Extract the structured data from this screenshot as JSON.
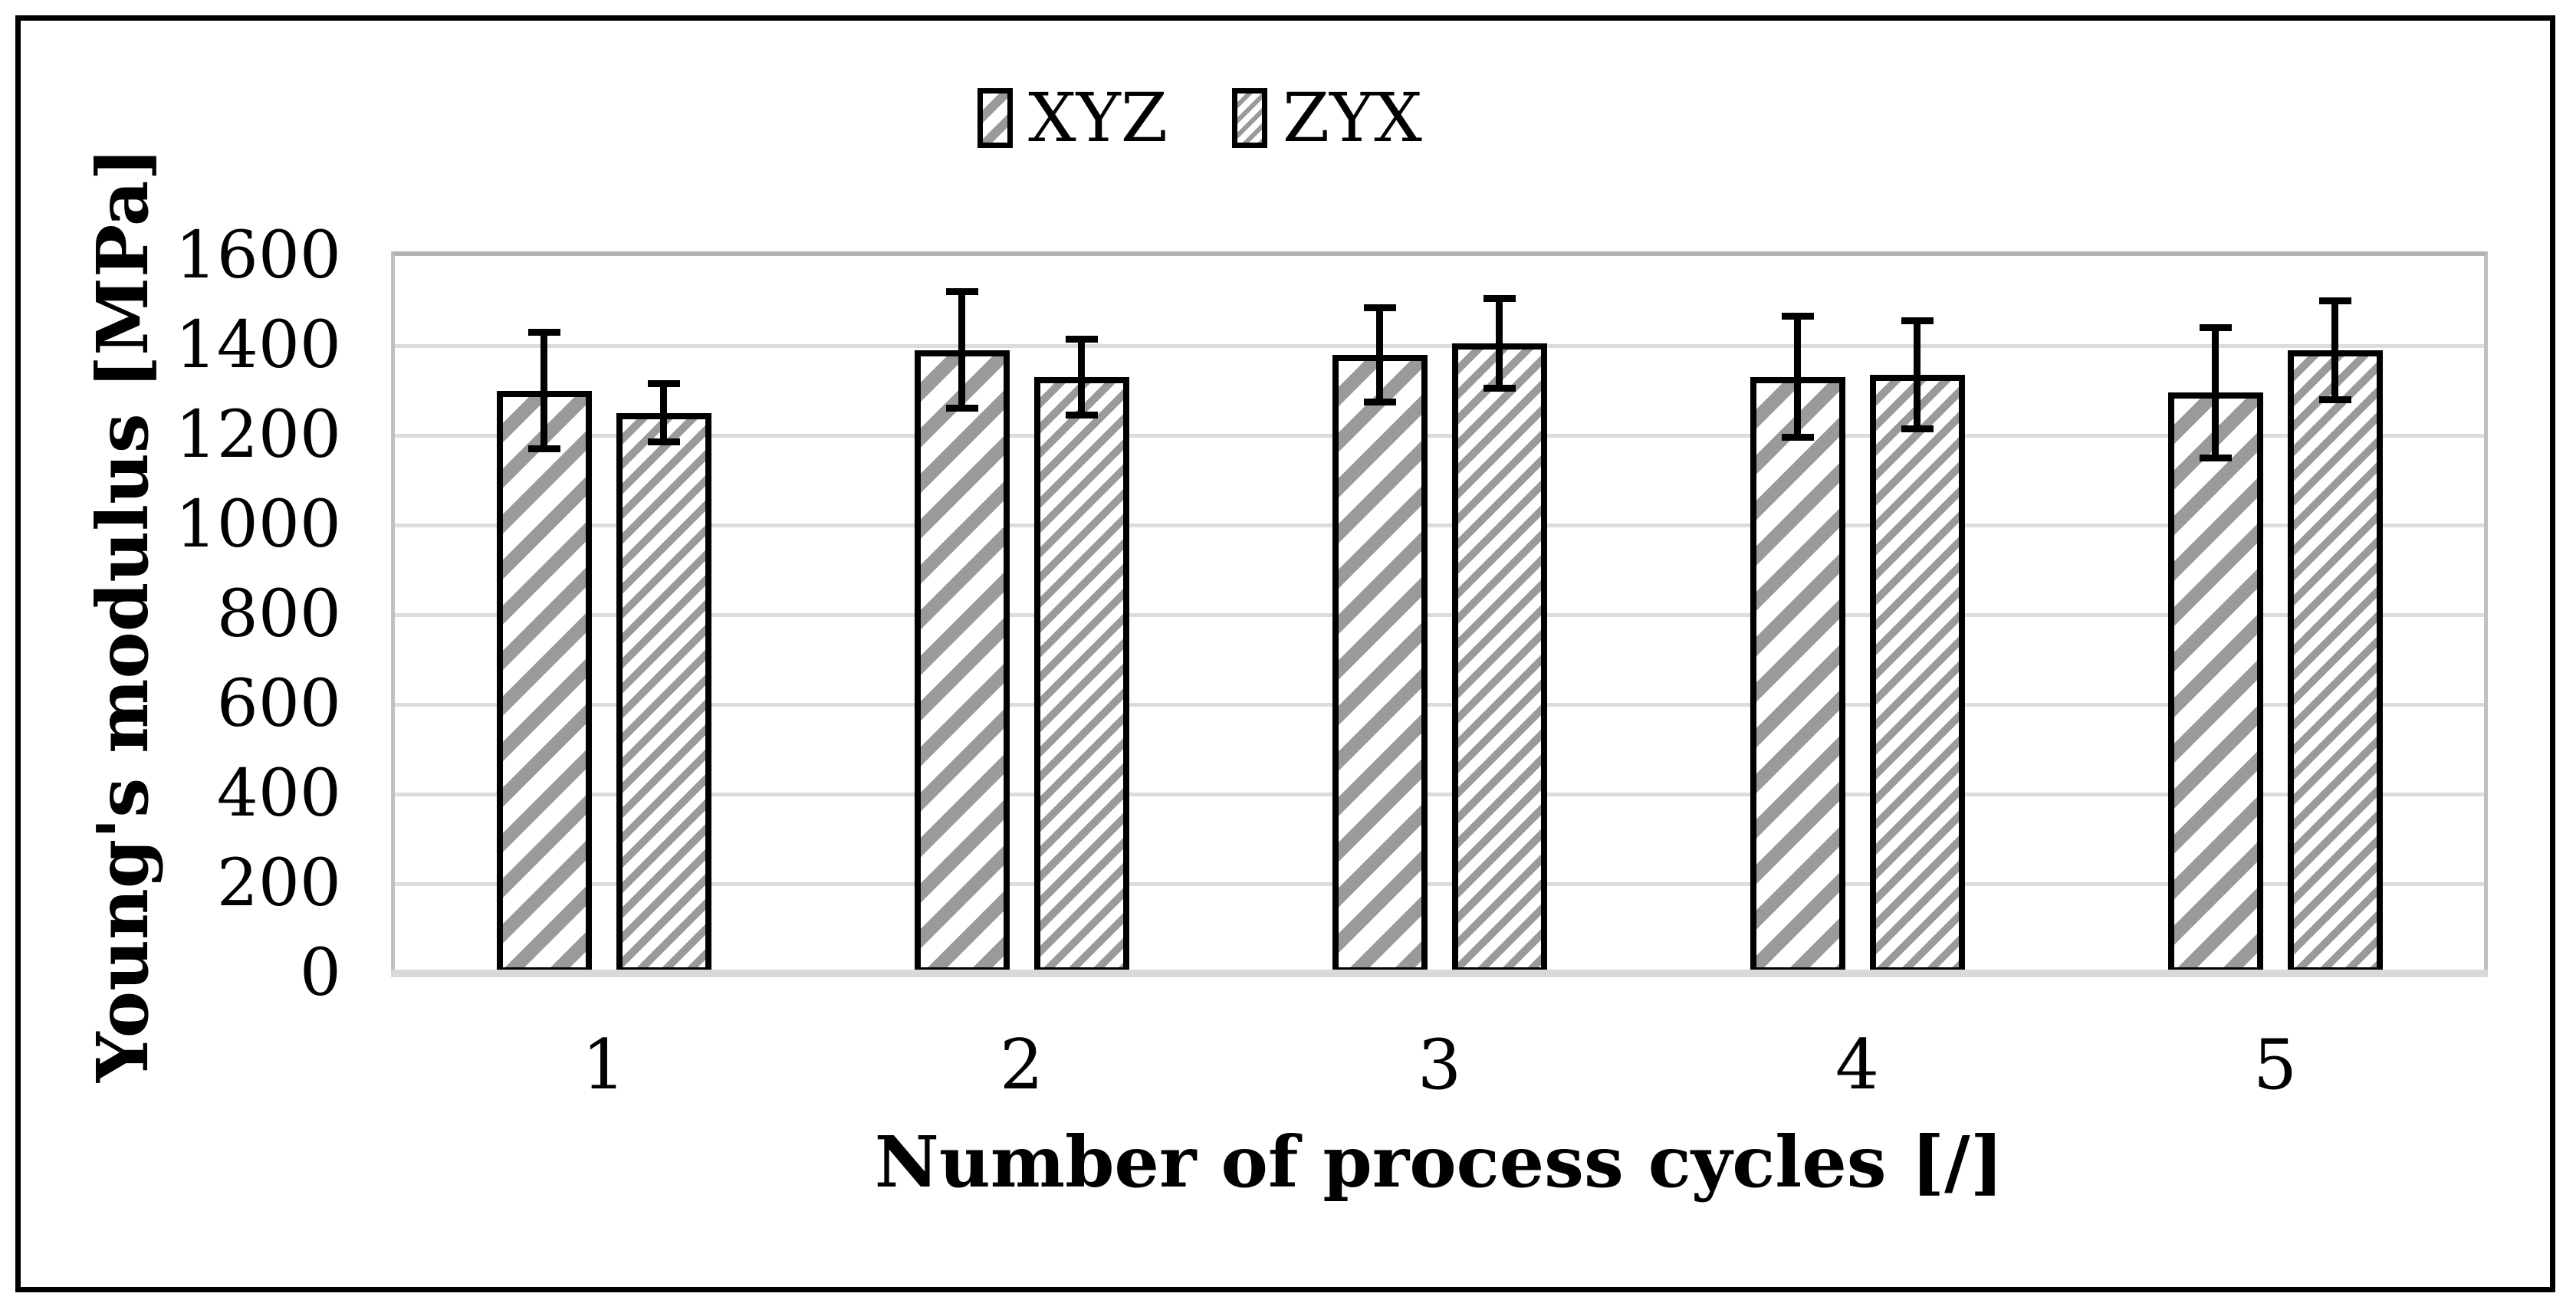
{
  "chart_data": {
    "type": "bar",
    "title": "",
    "xlabel": "Number of process cycles [/]",
    "ylabel": "Young's modulus [MPa]",
    "categories": [
      "1",
      "2",
      "3",
      "4",
      "5"
    ],
    "series": [
      {
        "name": "XYZ",
        "pattern": "wide-diagonal",
        "values": [
          1300,
          1390,
          1380,
          1330,
          1295
        ],
        "errors": [
          130,
          130,
          105,
          135,
          145
        ]
      },
      {
        "name": "ZYX",
        "pattern": "dense-diagonal",
        "values": [
          1250,
          1330,
          1405,
          1335,
          1390
        ],
        "errors": [
          65,
          85,
          100,
          120,
          110
        ]
      }
    ],
    "ylim": [
      0,
      1600
    ],
    "ytick_step": 200,
    "grid": "horizontal",
    "legend_position": "top-center",
    "colors": {
      "hatch": "#9a9a9a",
      "bar_fill": "#ffffff",
      "bar_border": "#000000",
      "gridline": "#dcdcdc",
      "plot_border": "#b3b3b3",
      "axis_baseline": "#d9d9d9",
      "figure_border": "#000000",
      "text": "#000000"
    }
  }
}
